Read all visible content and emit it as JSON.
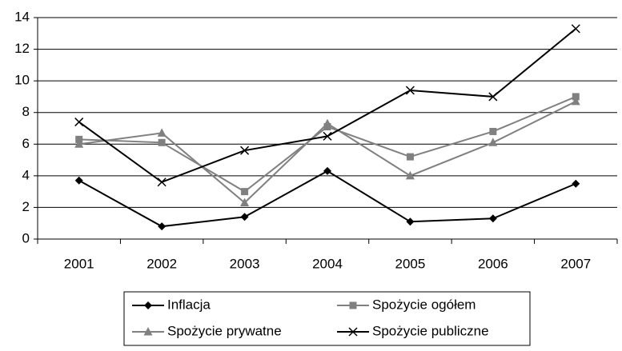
{
  "chart_data": {
    "type": "line",
    "categories": [
      "2001",
      "2002",
      "2003",
      "2004",
      "2005",
      "2006",
      "2007"
    ],
    "series": [
      {
        "name": "Inflacja",
        "color": "#000000",
        "marker": "diamond",
        "values": [
          3.7,
          0.8,
          1.4,
          4.3,
          1.1,
          1.3,
          3.5
        ]
      },
      {
        "name": "Spożycie ogółem",
        "color": "#808080",
        "marker": "square",
        "values": [
          6.3,
          6.1,
          3.0,
          7.1,
          5.2,
          6.8,
          9.0
        ]
      },
      {
        "name": "Spożycie prywatne",
        "color": "#808080",
        "marker": "triangle",
        "values": [
          6.0,
          6.7,
          2.3,
          7.3,
          4.0,
          6.1,
          8.7
        ]
      },
      {
        "name": "Spożycie publiczne",
        "color": "#000000",
        "marker": "x",
        "values": [
          7.4,
          3.6,
          5.6,
          6.5,
          9.4,
          9.0,
          13.3
        ]
      }
    ],
    "ylim": [
      0,
      14
    ],
    "yticks": [
      0,
      2,
      4,
      6,
      8,
      10,
      12,
      14
    ],
    "grid": true,
    "legend": "bottom"
  }
}
